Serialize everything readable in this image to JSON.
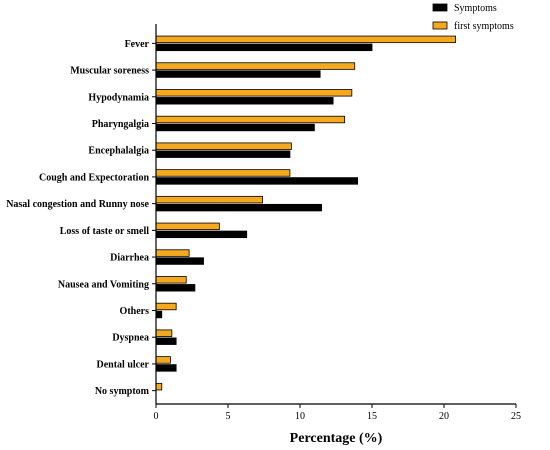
{
  "chart_data": {
    "type": "bar",
    "orientation": "horizontal",
    "xlabel": "Percentage (%)",
    "ylabel": "",
    "xlim": [
      0,
      25
    ],
    "xticks": [
      0,
      5,
      10,
      15,
      20,
      25
    ],
    "grid": false,
    "legend_position": "top-right",
    "categories": [
      "Fever",
      "Muscular soreness",
      "Hypodynamia",
      "Pharyngalgia",
      "Encephalalgia",
      "Cough and Expectoration",
      "Nasal congestion and Runny nose",
      "Loss of taste or smell",
      "Diarrhea",
      "Nausea and Vomiting",
      "Others",
      "Dyspnea",
      "Dental ulcer",
      "No symptom"
    ],
    "series": [
      {
        "name": "Symptoms",
        "color": "#000000",
        "values": [
          15.0,
          11.4,
          12.3,
          11.0,
          9.3,
          14.0,
          11.5,
          6.3,
          3.3,
          2.7,
          0.4,
          1.4,
          1.4,
          0.0
        ]
      },
      {
        "name": "first symptoms",
        "color": "#F5A91F",
        "values": [
          20.8,
          13.8,
          13.6,
          13.1,
          9.4,
          9.3,
          7.4,
          4.4,
          2.3,
          2.1,
          1.4,
          1.1,
          1.0,
          0.4
        ]
      }
    ]
  }
}
